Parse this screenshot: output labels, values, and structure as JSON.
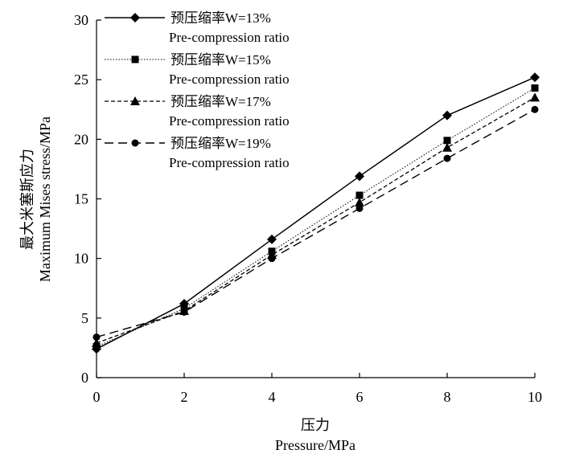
{
  "chart_data": {
    "type": "line",
    "x": [
      0,
      2,
      4,
      6,
      8,
      10
    ],
    "series": [
      {
        "name": "预压缩率W=13%",
        "name_en": "Pre-compression ratio",
        "marker": "diamond",
        "dash": "solid",
        "values": [
          2.4,
          6.2,
          11.6,
          16.9,
          22.0,
          25.2
        ]
      },
      {
        "name": "预压缩率W=15%",
        "name_en": "Pre-compression ratio",
        "marker": "square",
        "dash": "dotted",
        "values": [
          2.6,
          5.8,
          10.6,
          15.3,
          19.9,
          24.3
        ]
      },
      {
        "name": "预压缩率W=17%",
        "name_en": "Pre-compression ratio",
        "marker": "triangle",
        "dash": "dashed",
        "values": [
          2.9,
          5.6,
          10.3,
          14.7,
          19.3,
          23.5
        ]
      },
      {
        "name": "预压缩率W=19%",
        "name_en": "Pre-compression ratio",
        "marker": "circle",
        "dash": "longdash",
        "values": [
          3.4,
          5.5,
          10.0,
          14.2,
          18.4,
          22.5
        ]
      }
    ],
    "xlabel": "压力",
    "xlabel_en": "Pressure/MPa",
    "ylabel": "最大米塞斯应力",
    "ylabel_en": "Maximum Mises stress/MPa",
    "xlim": [
      0,
      10
    ],
    "ylim": [
      0,
      30
    ],
    "xticks": [
      0,
      2,
      4,
      6,
      8,
      10
    ],
    "yticks": [
      0,
      5,
      10,
      15,
      20,
      25,
      30
    ],
    "grid": false,
    "legend_position": "top-left",
    "line_color": "#000000"
  }
}
